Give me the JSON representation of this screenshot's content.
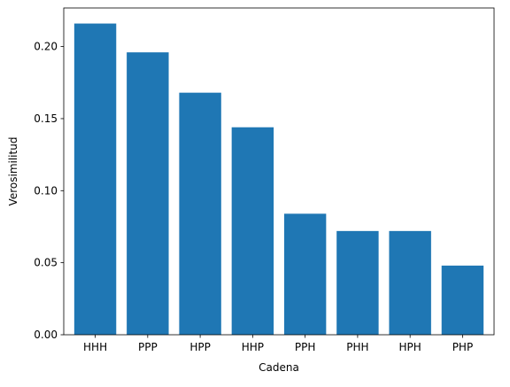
{
  "chart_data": {
    "type": "bar",
    "categories": [
      "HHH",
      "PPP",
      "HPP",
      "HHP",
      "PPH",
      "PHH",
      "HPH",
      "PHP"
    ],
    "values": [
      0.216,
      0.196,
      0.168,
      0.144,
      0.084,
      0.072,
      0.072,
      0.048
    ],
    "title": "",
    "xlabel": "Cadena",
    "ylabel": "Verosimilitud",
    "ylim": [
      0,
      0.2268
    ],
    "yticks": [
      0.0,
      0.05,
      0.1,
      0.15,
      0.2
    ],
    "ytick_labels": [
      "0.00",
      "0.05",
      "0.10",
      "0.15",
      "0.20"
    ],
    "grid": false,
    "bar_color": "#1f77b4"
  }
}
